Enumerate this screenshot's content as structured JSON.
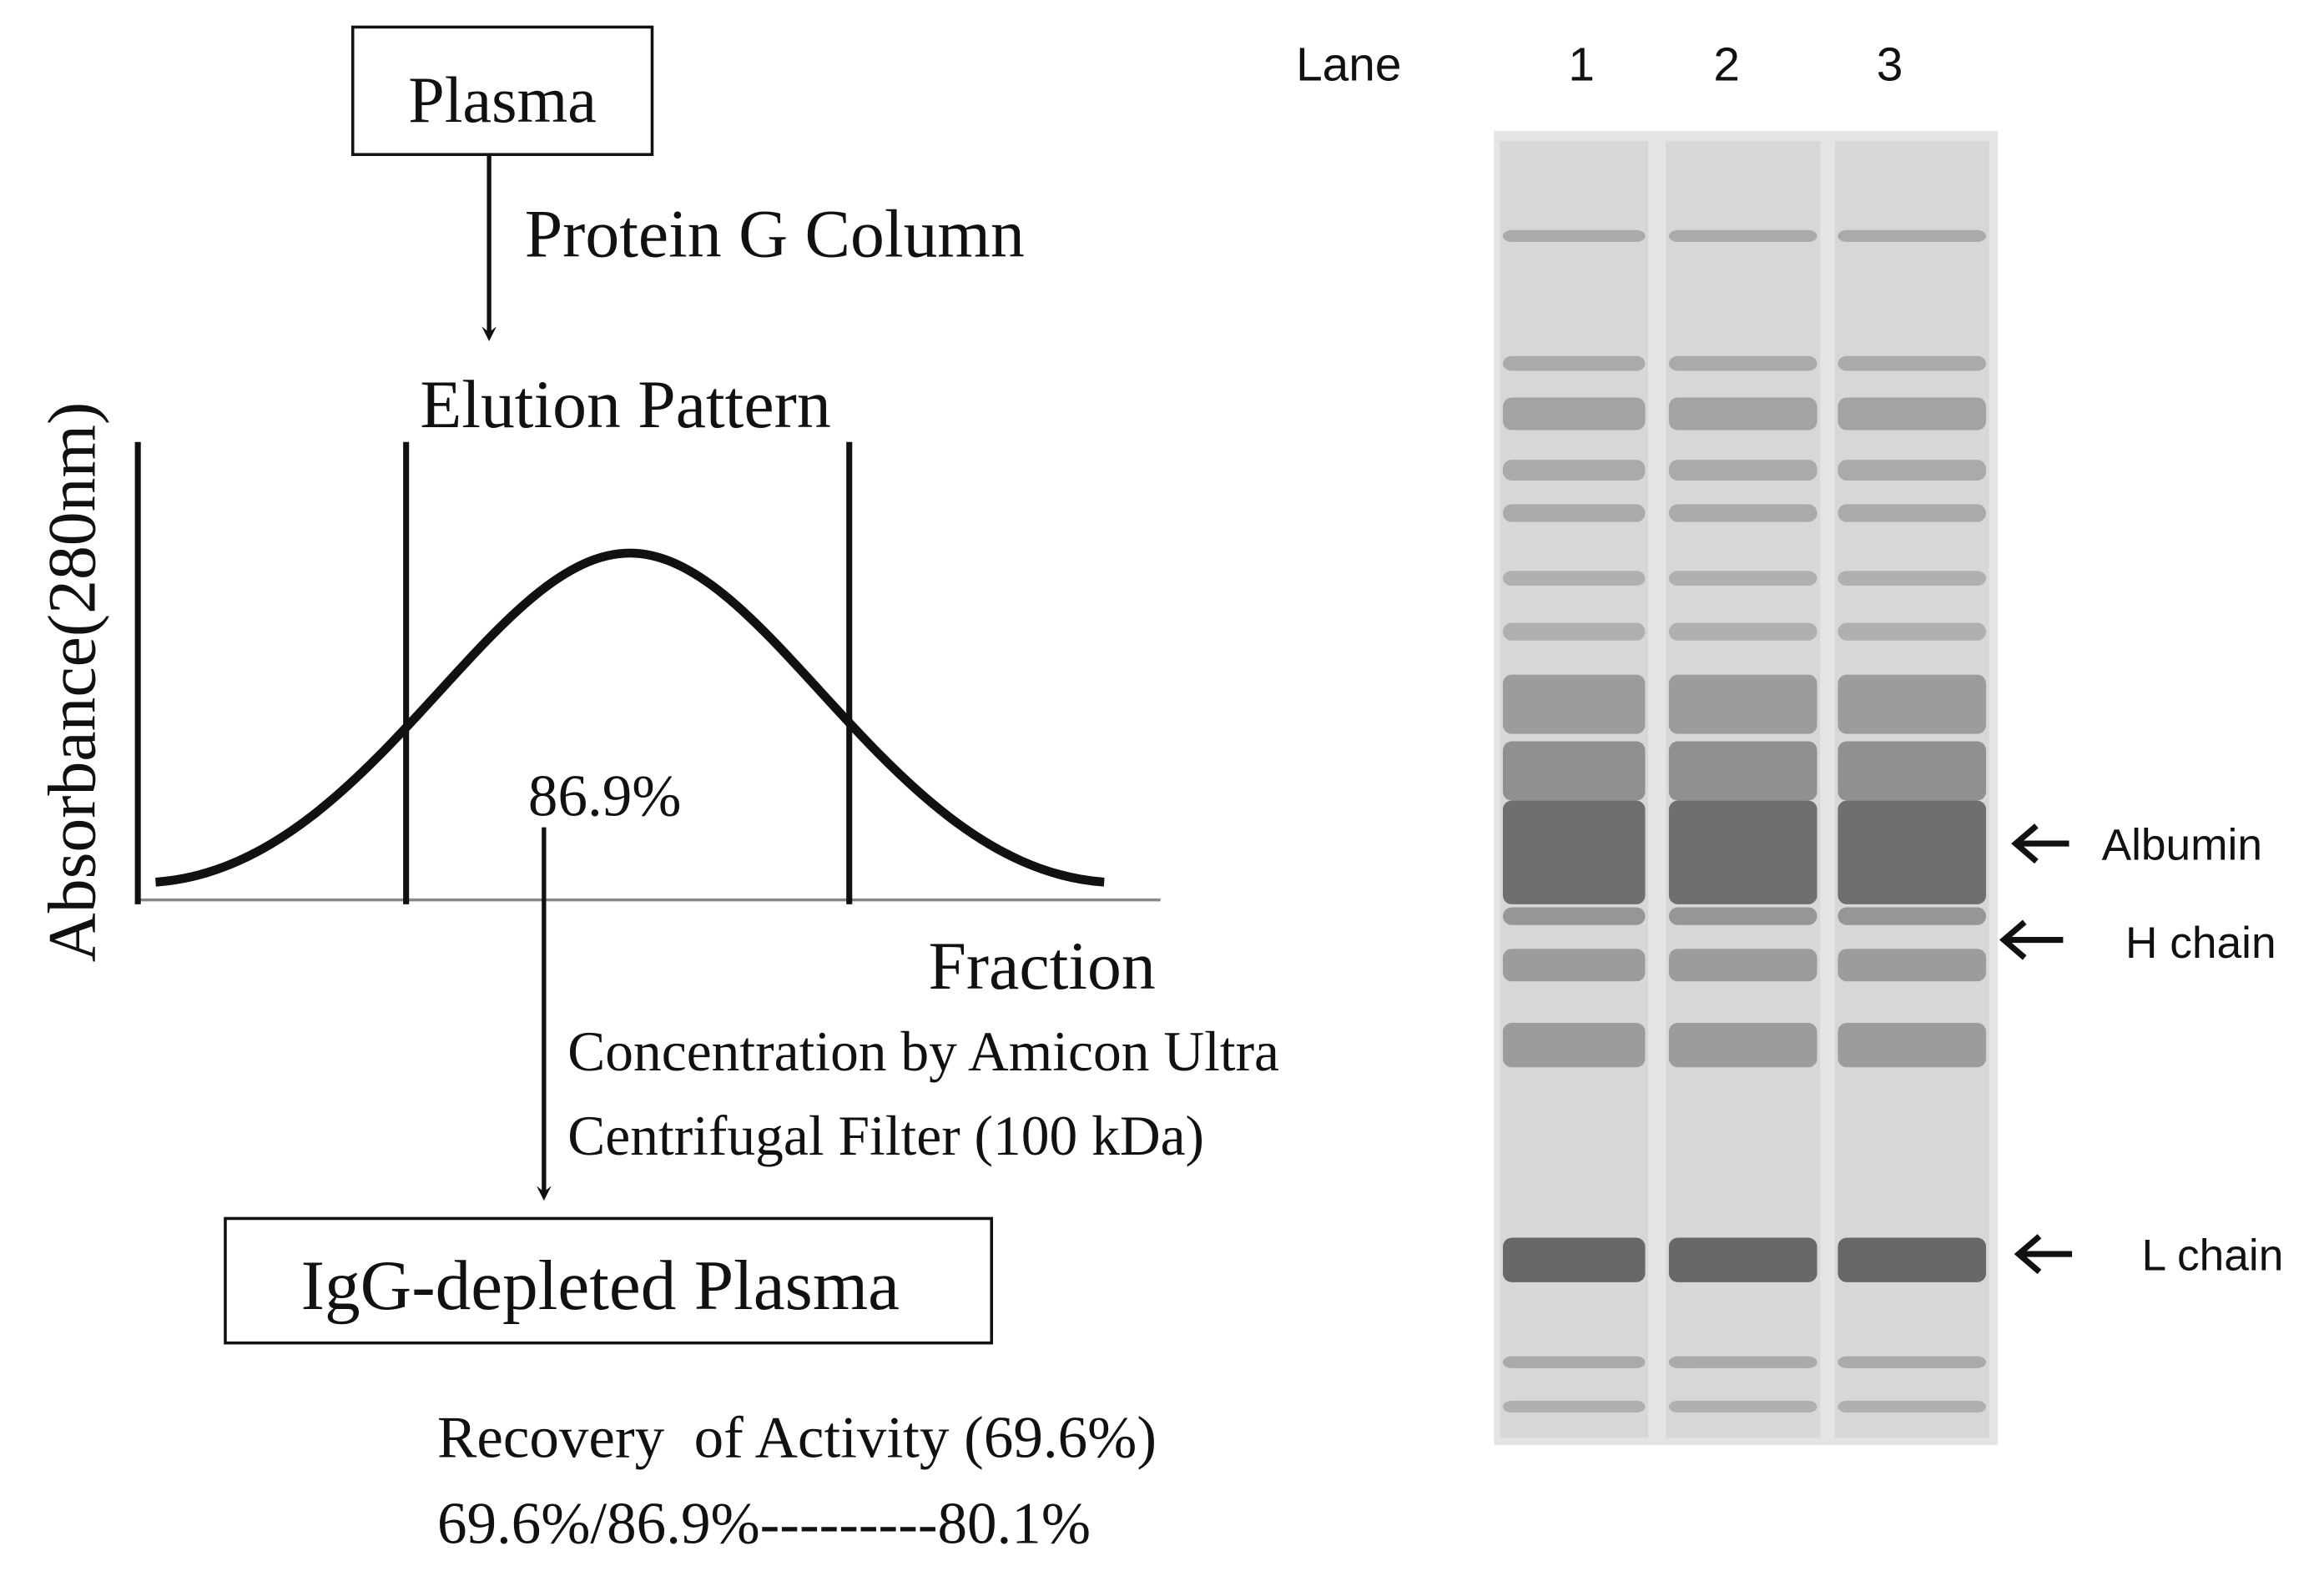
{
  "flowchart": {
    "start_box": "Plasma",
    "step_1": "Protein G Column",
    "elution_title": "Elution Pattern",
    "y_axis_label": "Absorbance(280nm)",
    "x_axis_label": "Fraction",
    "fraction_yield": "86.9%",
    "step_2_lines": [
      "Concentration by Amicon Ultra",
      "Centrifugal Filter (100 kDa)"
    ],
    "end_box": "IgG-depleted Plasma",
    "recovery_lines": [
      "Recovery  of Activity (69.6%)",
      "69.6%/86.9%---------80.1%"
    ]
  },
  "gel": {
    "lane_header": "Lane",
    "lanes": [
      "1",
      "2",
      "3"
    ],
    "band_labels": [
      "Albumin",
      "H chain",
      "L chain"
    ]
  }
}
